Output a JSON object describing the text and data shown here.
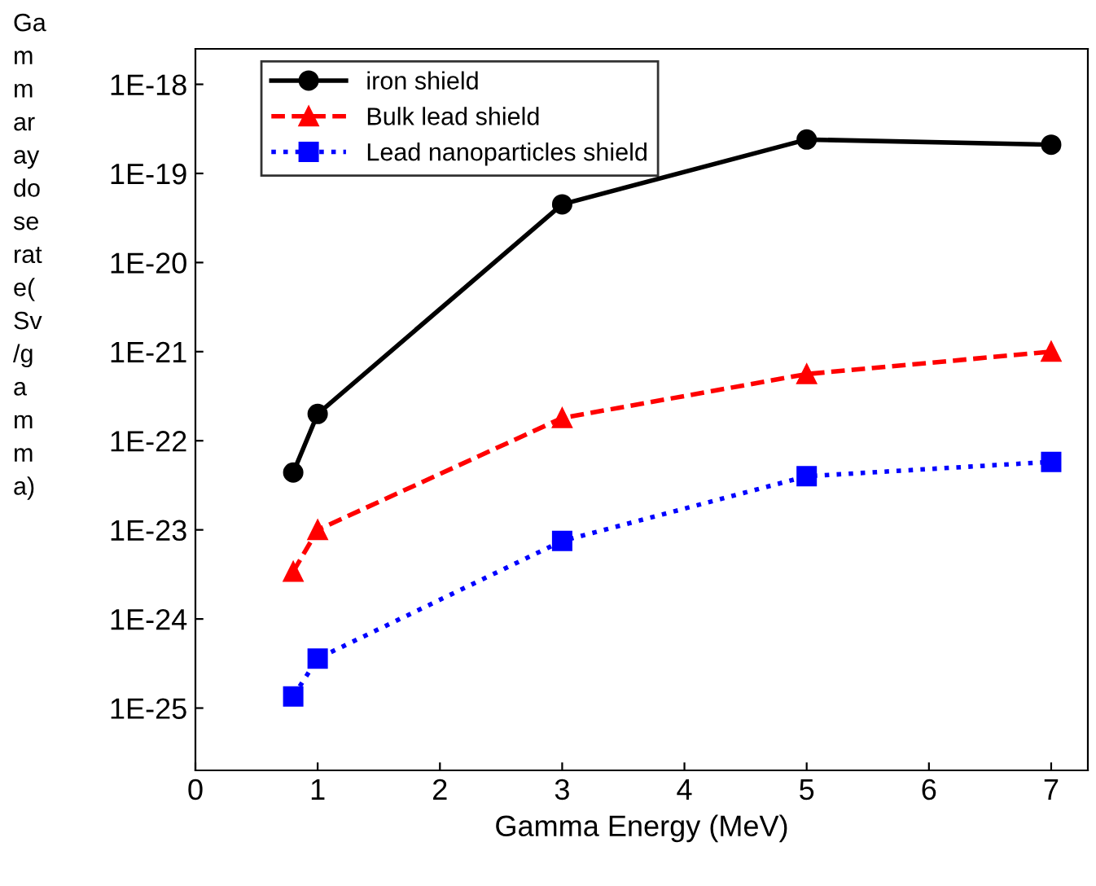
{
  "chart_data": {
    "type": "line",
    "xlabel": "Gamma Energy (MeV)",
    "ylabel": "Ga\nm\nm\nar\nay\ndo\nse\nrat\ne(\nSv\n/g\na\nm\nm\na)",
    "log": "y",
    "legend": "top left",
    "grid": false,
    "xlim": [
      0,
      7.3
    ],
    "xticks": [
      0,
      1,
      2,
      3,
      4,
      5,
      6,
      7
    ],
    "ylim": [
      2e-26,
      2.5e-18
    ],
    "yticks": [
      {
        "value": 1e-25,
        "label": "1E-25"
      },
      {
        "value": 1e-24,
        "label": "1E-24"
      },
      {
        "value": 1e-23,
        "label": "1E-23"
      },
      {
        "value": 1e-22,
        "label": "1E-22"
      },
      {
        "value": 1e-21,
        "label": "1E-21"
      },
      {
        "value": 1e-20,
        "label": "1E-20"
      },
      {
        "value": 1e-19,
        "label": "1E-19"
      },
      {
        "value": 1e-18,
        "label": "1E-18"
      }
    ],
    "x": [
      0.8,
      1,
      3,
      5,
      7
    ],
    "series": [
      {
        "name": "iron shield",
        "color": "#000000",
        "marker": "circle",
        "line_style": "solid",
        "values": [
          4.4e-23,
          2e-22,
          4.5e-20,
          2.4e-19,
          2.1e-19
        ]
      },
      {
        "name": "Bulk lead shield",
        "color": "#ff0000",
        "marker": "triangle",
        "line_style": "dashed",
        "values": [
          3.4e-24,
          1e-23,
          1.8e-22,
          5.6e-22,
          1e-21
        ]
      },
      {
        "name": "Lead nanoparticles shield",
        "color": "#0000ff",
        "marker": "square",
        "line_style": "dotted",
        "values": [
          1.35e-25,
          3.6e-25,
          7.5e-24,
          4e-23,
          5.8e-23
        ]
      }
    ]
  }
}
